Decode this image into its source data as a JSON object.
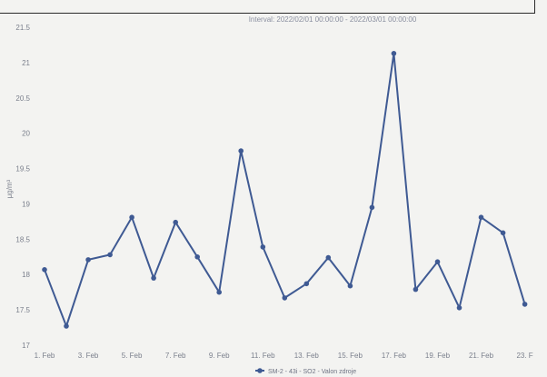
{
  "chart_data": {
    "type": "line",
    "subtitle": "Interval: 2022/02/01 00:00:00 - 2022/03/01 00:00:00",
    "ylabel": "µg/m³",
    "xlabel": "",
    "ylim": [
      17,
      21.5
    ],
    "yticks": [
      "17",
      "17.5",
      "18",
      "18.5",
      "19",
      "19.5",
      "20",
      "20.5",
      "21",
      "21.5"
    ],
    "ytick_values": [
      17,
      17.5,
      18,
      18.5,
      19,
      19.5,
      20,
      20.5,
      21,
      21.5
    ],
    "xtick_labels": [
      "1. Feb",
      "3. Feb",
      "5. Feb",
      "7. Feb",
      "9. Feb",
      "11. Feb",
      "13. Feb",
      "15. Feb",
      "17. Feb",
      "19. Feb",
      "21. Feb",
      "23. F"
    ],
    "x": [
      "2022-02-01",
      "2022-02-02",
      "2022-02-03",
      "2022-02-04",
      "2022-02-05",
      "2022-02-06",
      "2022-02-07",
      "2022-02-08",
      "2022-02-09",
      "2022-02-10",
      "2022-02-11",
      "2022-02-12",
      "2022-02-13",
      "2022-02-14",
      "2022-02-15",
      "2022-02-16",
      "2022-02-17",
      "2022-02-18",
      "2022-02-19",
      "2022-02-20",
      "2022-02-21",
      "2022-02-22",
      "2022-02-23"
    ],
    "series": [
      {
        "name": "SM-2 - 43i - SO2 - Valon zdroje",
        "color": "#3f5a93",
        "values": [
          18.07,
          17.27,
          18.21,
          18.28,
          18.81,
          17.95,
          18.74,
          18.25,
          17.75,
          19.75,
          18.39,
          17.67,
          17.87,
          18.24,
          17.84,
          18.95,
          21.13,
          17.79,
          18.18,
          17.53,
          18.81,
          18.59,
          17.58
        ]
      }
    ],
    "grid": false,
    "legend_position": "bottom-center"
  },
  "colors": {
    "line": "#3f5a93",
    "axis_text": "#7a7f8c",
    "background": "#f3f3f1"
  }
}
